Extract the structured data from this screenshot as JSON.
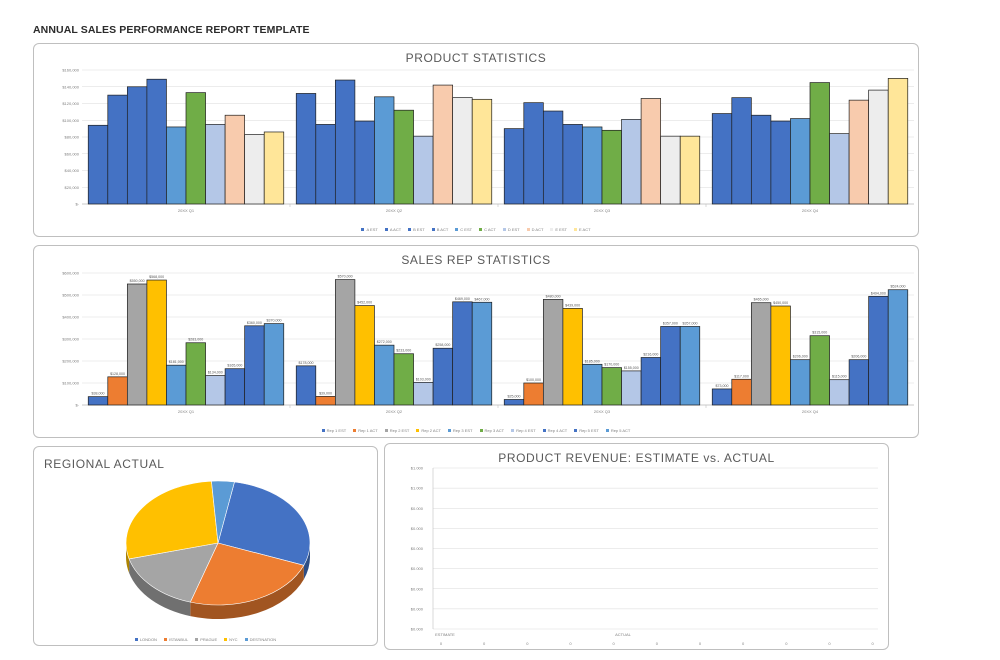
{
  "report": {
    "title": "ANNUAL SALES PERFORMANCE REPORT TEMPLATE"
  },
  "colors": {
    "blue": "#4472c4",
    "orange": "#ed7d31",
    "gray": "#a5a5a5",
    "gold": "#ffc000",
    "lightblue": "#5b9bd5",
    "green": "#70ad47",
    "paleblue": "#b4c7e7",
    "peach": "#f8cbad",
    "lightgray": "#ededed",
    "paleyellow": "#ffe699"
  },
  "product_chart": {
    "title": "PRODUCT STATISTICS",
    "chart_data": {
      "type": "bar",
      "categories": [
        "20XX Q1",
        "20XX Q2",
        "20XX Q3",
        "20XX Q4"
      ],
      "yticks": [
        "$-",
        "$20,000",
        "$40,000",
        "$60,000",
        "$80,000",
        "$100,000",
        "$120,000",
        "$140,000",
        "$160,000"
      ],
      "ylim": [
        0,
        160000
      ],
      "grid": true,
      "legend": "bottom",
      "series": [
        {
          "name": "A EST",
          "color": "#4472c4",
          "values": [
            94000,
            132000,
            90000,
            108000
          ]
        },
        {
          "name": "A ACT",
          "color": "#4472c4",
          "values": [
            130000,
            95000,
            121000,
            127000
          ]
        },
        {
          "name": "B EST",
          "color": "#4472c4",
          "values": [
            140000,
            148000,
            111000,
            106000
          ]
        },
        {
          "name": "B ACT",
          "color": "#4472c4",
          "values": [
            149000,
            99000,
            95000,
            99000
          ]
        },
        {
          "name": "C EST",
          "color": "#5b9bd5",
          "values": [
            92000,
            128000,
            92000,
            102000
          ]
        },
        {
          "name": "C ACT",
          "color": "#70ad47",
          "values": [
            133000,
            112000,
            88000,
            145000
          ]
        },
        {
          "name": "D EST",
          "color": "#b4c7e7",
          "values": [
            95000,
            81000,
            101000,
            84000
          ]
        },
        {
          "name": "D ACT",
          "color": "#f8cbad",
          "values": [
            106000,
            142000,
            126000,
            124000
          ]
        },
        {
          "name": "E EST",
          "color": "#ededed",
          "values": [
            83000,
            127000,
            81000,
            136000
          ]
        },
        {
          "name": "E ACT",
          "color": "#ffe699",
          "values": [
            86000,
            125000,
            81000,
            150000
          ]
        }
      ]
    }
  },
  "salesrep_chart": {
    "title": "SALES REP STATISTICS",
    "chart_data": {
      "type": "bar",
      "categories": [
        "20XX Q1",
        "20XX Q2",
        "20XX Q3",
        "20XX Q4"
      ],
      "yticks": [
        "$-",
        "$100,000",
        "$200,000",
        "$300,000",
        "$400,000",
        "$500,000",
        "$600,000"
      ],
      "ylim": [
        0,
        600000
      ],
      "grid": true,
      "legend": "bottom",
      "series": [
        {
          "name": "Rep 1 EST",
          "color": "#4472c4",
          "values": [
            38000,
            178000,
            25000,
            73000
          ],
          "labels": [
            "$38,000",
            "$178,000",
            "$25,000",
            "$73,000"
          ]
        },
        {
          "name": "Rep 1 ACT",
          "color": "#ed7d31",
          "values": [
            128000,
            39000,
            100000,
            117000
          ],
          "labels": [
            "$128,000",
            "$39,000",
            "$100,000",
            "$117,000"
          ]
        },
        {
          "name": "Rep 2 EST",
          "color": "#a5a5a5",
          "values": [
            550000,
            570000,
            480000,
            465000
          ],
          "labels": [
            "$550,000",
            "$570,000",
            "$480,000",
            "$465,000"
          ]
        },
        {
          "name": "Rep 2 ACT",
          "color": "#ffc000",
          "values": [
            568000,
            452000,
            439000,
            450000
          ],
          "labels": [
            "$568,000",
            "$452,000",
            "$439,000",
            "$450,000"
          ]
        },
        {
          "name": "Rep 3 EST",
          "color": "#5b9bd5",
          "values": [
            181000,
            272000,
            185000,
            206000
          ],
          "labels": [
            "$181,000",
            "$272,000",
            "$185,000",
            "$206,000"
          ]
        },
        {
          "name": "Rep 3 ACT",
          "color": "#70ad47",
          "values": [
            283000,
            233000,
            170000,
            315000
          ],
          "labels": [
            "$283,000",
            "$233,000",
            "$170,000",
            "$315,000"
          ]
        },
        {
          "name": "Rep 4 EST",
          "color": "#b4c7e7",
          "values": [
            134000,
            103000,
            155000,
            115000
          ],
          "labels": [
            "$134,000",
            "$103,000",
            "$155,000",
            "$115,000"
          ]
        },
        {
          "name": "Rep 4 ACT",
          "color": "#4472c4",
          "values": [
            165000,
            258000,
            216000,
            206000
          ],
          "labels": [
            "$165,000",
            "$258,000",
            "$216,000",
            "$206,000"
          ]
        },
        {
          "name": "Rep 5 EST",
          "color": "#4472c4",
          "values": [
            360000,
            469000,
            357000,
            494000
          ],
          "labels": [
            "$360,000",
            "$469,000",
            "$357,000",
            "$494,000"
          ]
        },
        {
          "name": "Rep 5 ACT",
          "color": "#5b9bd5",
          "values": [
            370000,
            467000,
            357000,
            524000
          ],
          "labels": [
            "$370,000",
            "$467,000",
            "$357,000",
            "$524,000"
          ]
        }
      ]
    }
  },
  "regional_chart": {
    "title": "REGIONAL ACTUAL",
    "chart_data": {
      "type": "pie",
      "legend": "bottom",
      "slices": [
        {
          "name": "LONDON",
          "color": "#4472c4",
          "value": 28
        },
        {
          "name": "ISTANBUL",
          "color": "#ed7d31",
          "value": 24
        },
        {
          "name": "PRAGUE",
          "color": "#a5a5a5",
          "value": 16
        },
        {
          "name": "NYC",
          "color": "#ffc000",
          "value": 28
        },
        {
          "name": "DESTINATION",
          "color": "#5b9bd5",
          "value": 4
        }
      ]
    }
  },
  "revenue_chart": {
    "title": "PRODUCT REVENUE: ESTIMATE vs. ACTUAL",
    "chart_data": {
      "type": "bar",
      "categories": [
        "ESTIMATE",
        "ACTUAL"
      ],
      "yticks": [
        "$0.000",
        "$0.000",
        "$0.000",
        "$0.000",
        "$0.000",
        "$0.000",
        "$0.000",
        "$1.000",
        "$1.000"
      ],
      "grid": true,
      "series": [],
      "table_row": [
        "0",
        "0",
        "0",
        "0",
        "0",
        "0",
        "0",
        "0",
        "0",
        "0",
        "0"
      ]
    }
  }
}
